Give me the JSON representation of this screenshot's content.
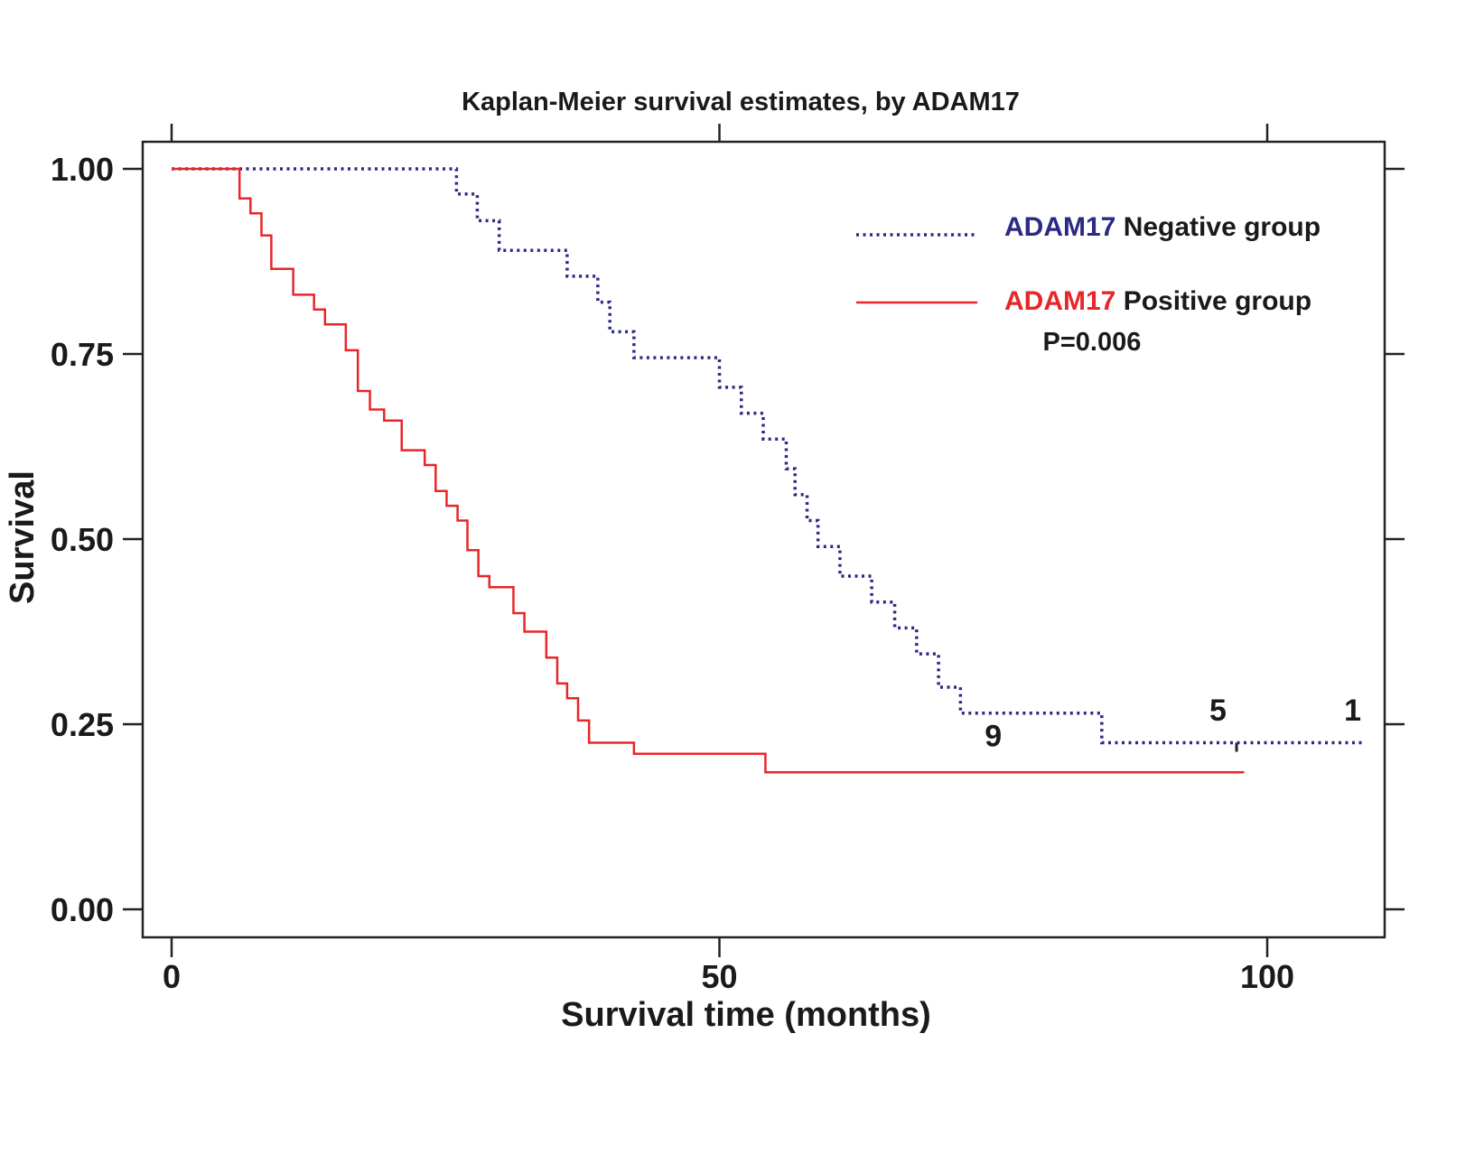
{
  "chart_data": {
    "type": "line",
    "subtype": "kaplan-meier-step",
    "title": "Kaplan-Meier survival estimates, by ADAM17",
    "xlabel": "Survival time (months)",
    "ylabel": "Survival",
    "xlim": [
      -5,
      112
    ],
    "ylim": [
      -0.04,
      1.04
    ],
    "xticks": [
      0,
      50,
      100
    ],
    "xtick_labels": [
      "0",
      "50",
      "100"
    ],
    "yticks": [
      0,
      0.25,
      0.5,
      0.75,
      1.0
    ],
    "ytick_labels": [
      "0.00",
      "0.25",
      "0.50",
      "0.75",
      "1.00"
    ],
    "grid": false,
    "legend_position": "top-right",
    "series": [
      {
        "name": "ADAM17 Negative group",
        "legend_prefix": "ADAM17",
        "legend_suffix": " Negative group",
        "color": "#2b2a84",
        "style": "dotted",
        "x": [
          0,
          26,
          27.9,
          29.9,
          36.1,
          38.9,
          40,
          42.2,
          50,
          52,
          54,
          56.1,
          56.9,
          58,
          59,
          61,
          63.9,
          66,
          68,
          70,
          72,
          84.9,
          108.7
        ],
        "y": [
          1.0,
          0.966,
          0.93,
          0.89,
          0.855,
          0.82,
          0.78,
          0.745,
          0.705,
          0.67,
          0.635,
          0.595,
          0.56,
          0.525,
          0.49,
          0.45,
          0.415,
          0.38,
          0.345,
          0.3,
          0.265,
          0.225,
          0.225
        ]
      },
      {
        "name": "ADAM17 Positive group",
        "legend_prefix": "ADAM17",
        "legend_suffix": " Positive group",
        "color": "#e8262a",
        "style": "solid",
        "x": [
          0,
          6.2,
          7.2,
          8.2,
          9.1,
          11.1,
          13,
          14,
          15.9,
          17,
          18.1,
          19.4,
          21,
          23.1,
          24.1,
          25.1,
          26.1,
          27,
          28,
          29,
          31.2,
          32.2,
          34.2,
          35.2,
          36.1,
          37.1,
          38.1,
          42.2,
          54.2,
          97.9
        ],
        "y": [
          1.0,
          0.96,
          0.94,
          0.91,
          0.865,
          0.83,
          0.81,
          0.79,
          0.755,
          0.7,
          0.675,
          0.66,
          0.62,
          0.6,
          0.565,
          0.545,
          0.525,
          0.485,
          0.45,
          0.435,
          0.4,
          0.375,
          0.34,
          0.305,
          0.285,
          0.255,
          0.225,
          0.21,
          0.185,
          0.185
        ]
      }
    ],
    "annotations": [
      {
        "text": "9",
        "x": 75,
        "y": 0.22
      },
      {
        "text": "5",
        "x": 95.5,
        "y": 0.255
      },
      {
        "text": "1",
        "x": 107.8,
        "y": 0.255
      },
      {
        "text": "P=0.006",
        "x": 84,
        "y": 0.755
      }
    ],
    "censor_marks": [
      {
        "series": "ADAM17 Negative group",
        "x": 97.2,
        "y": 0.225
      }
    ]
  }
}
